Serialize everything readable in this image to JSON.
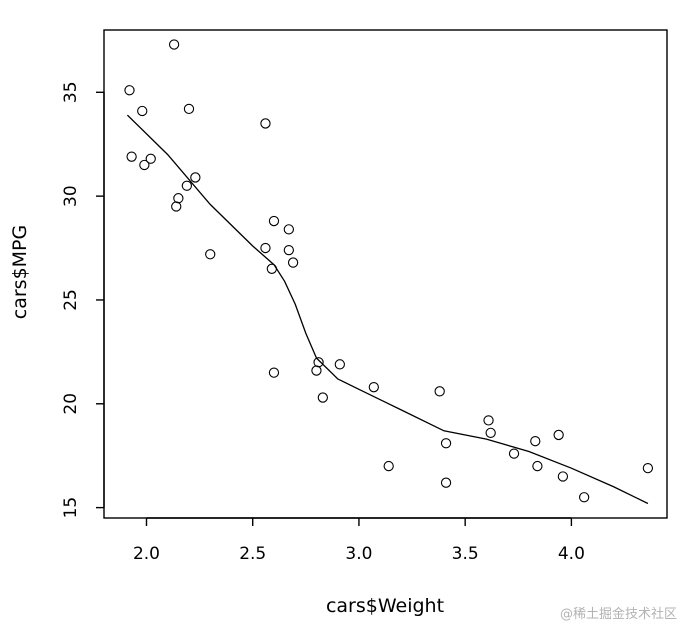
{
  "chart_data": {
    "type": "scatter",
    "xlabel": "cars$Weight",
    "ylabel": "cars$MPG",
    "xlim": [
      1.8,
      4.45
    ],
    "ylim": [
      14.5,
      38.0
    ],
    "x_ticks": [
      "2.0",
      "2.5",
      "3.0",
      "3.5",
      "4.0"
    ],
    "y_ticks": [
      "15",
      "20",
      "25",
      "30",
      "35"
    ],
    "grid": false,
    "legend": "none",
    "points": [
      {
        "x": 1.92,
        "y": 35.1
      },
      {
        "x": 1.93,
        "y": 31.9
      },
      {
        "x": 1.98,
        "y": 34.1
      },
      {
        "x": 1.99,
        "y": 31.5
      },
      {
        "x": 2.02,
        "y": 31.8
      },
      {
        "x": 2.13,
        "y": 37.3
      },
      {
        "x": 2.14,
        "y": 29.5
      },
      {
        "x": 2.15,
        "y": 29.9
      },
      {
        "x": 2.19,
        "y": 30.5
      },
      {
        "x": 2.2,
        "y": 34.2
      },
      {
        "x": 2.23,
        "y": 30.9
      },
      {
        "x": 2.3,
        "y": 27.2
      },
      {
        "x": 2.56,
        "y": 33.5
      },
      {
        "x": 2.56,
        "y": 27.5
      },
      {
        "x": 2.59,
        "y": 26.5
      },
      {
        "x": 2.6,
        "y": 28.8
      },
      {
        "x": 2.6,
        "y": 21.5
      },
      {
        "x": 2.67,
        "y": 28.4
      },
      {
        "x": 2.67,
        "y": 27.4
      },
      {
        "x": 2.69,
        "y": 26.8
      },
      {
        "x": 2.8,
        "y": 21.6
      },
      {
        "x": 2.81,
        "y": 22.0
      },
      {
        "x": 2.83,
        "y": 20.3
      },
      {
        "x": 2.91,
        "y": 21.9
      },
      {
        "x": 3.07,
        "y": 20.8
      },
      {
        "x": 3.14,
        "y": 17.0
      },
      {
        "x": 3.38,
        "y": 20.6
      },
      {
        "x": 3.41,
        "y": 18.1
      },
      {
        "x": 3.41,
        "y": 16.2
      },
      {
        "x": 3.61,
        "y": 19.2
      },
      {
        "x": 3.62,
        "y": 18.6
      },
      {
        "x": 3.73,
        "y": 17.6
      },
      {
        "x": 3.83,
        "y": 18.2
      },
      {
        "x": 3.84,
        "y": 17.0
      },
      {
        "x": 3.94,
        "y": 18.5
      },
      {
        "x": 3.96,
        "y": 16.5
      },
      {
        "x": 4.06,
        "y": 15.5
      },
      {
        "x": 4.36,
        "y": 16.9
      }
    ],
    "smooth_line": {
      "x": [
        1.91,
        2.1,
        2.3,
        2.5,
        2.6,
        2.65,
        2.7,
        2.75,
        2.8,
        2.9,
        3.0,
        3.2,
        3.4,
        3.6,
        3.8,
        4.0,
        4.2,
        4.36
      ],
      "y": [
        33.9,
        32.0,
        29.6,
        27.6,
        26.7,
        25.9,
        24.8,
        23.4,
        22.2,
        21.2,
        20.7,
        19.7,
        18.7,
        18.3,
        17.7,
        16.9,
        16.0,
        15.2
      ]
    }
  },
  "watermark": "@稀土掘金技术社区"
}
